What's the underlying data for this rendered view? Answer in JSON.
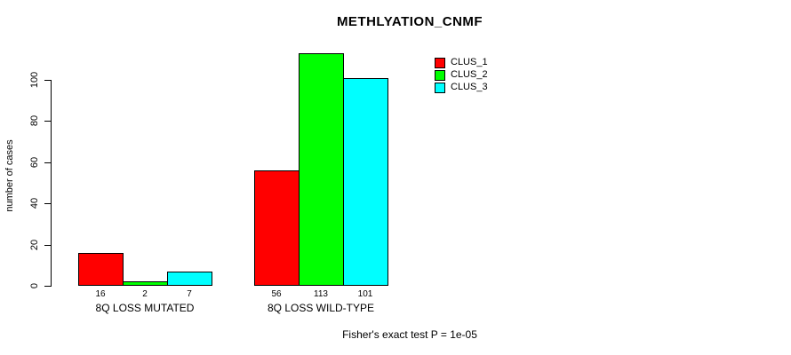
{
  "chart_data": {
    "type": "bar",
    "title": "METHLYATION_CNMF",
    "xlabel": "",
    "ylabel": "number of cases",
    "categories": [
      "8Q LOSS MUTATED",
      "8Q LOSS WILD-TYPE"
    ],
    "series": [
      {
        "name": "CLUS_1",
        "color": "#ff0000",
        "values": [
          16,
          56
        ]
      },
      {
        "name": "CLUS_2",
        "color": "#00ff00",
        "values": [
          2,
          113
        ]
      },
      {
        "name": "CLUS_3",
        "color": "#00ffff",
        "values": [
          7,
          101
        ]
      }
    ],
    "bar_value_labels": [
      [
        "16",
        "2",
        "7"
      ],
      [
        "56",
        "113",
        "101"
      ]
    ],
    "yticks": [
      0,
      20,
      40,
      60,
      80,
      100
    ],
    "ylim": [
      0,
      116
    ],
    "grid": false,
    "legend_position": "top-right",
    "legend_entries": [
      "CLUS_1",
      "CLUS_2",
      "CLUS_3"
    ],
    "annotation": "Fisher's exact test P = 1e-05"
  },
  "colors": {
    "clus_1": "#ff0000",
    "clus_2": "#00ff00",
    "clus_3": "#00ffff",
    "axis": "#000000",
    "background": "#ffffff"
  }
}
